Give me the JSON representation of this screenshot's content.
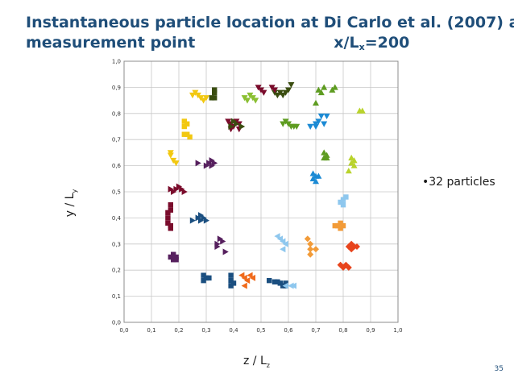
{
  "title": {
    "line1": "Instantaneous particle location at Di Carlo et al. (2007) at",
    "line2_left": "measurement point",
    "line2_right_main": "x/L",
    "line2_right_sub": "x",
    "line2_right_tail": "=200"
  },
  "note": "•32 particles",
  "page_number": "35",
  "chart_data": {
    "type": "scatter",
    "title": "",
    "xlabel_main": "z / L",
    "xlabel_sub": "z",
    "ylabel_main": "y / L",
    "ylabel_sub": "y",
    "xlim": [
      0,
      1
    ],
    "ylim": [
      0,
      1
    ],
    "xticks": [
      "0,0",
      "0,1",
      "0,2",
      "0,3",
      "0,4",
      "0,5",
      "0,6",
      "0,7",
      "0,8",
      "0,9",
      "1,0"
    ],
    "yticks": [
      "0,0",
      "0,1",
      "0,2",
      "0,3",
      "0,4",
      "0,5",
      "0,6",
      "0,7",
      "0,8",
      "0,9",
      "1,0"
    ],
    "grid": true,
    "legend": "none",
    "series": [
      {
        "color": "#f2c811",
        "marker": "tri-down",
        "points": [
          [
            0.26,
            0.88
          ],
          [
            0.27,
            0.87
          ],
          [
            0.28,
            0.86
          ],
          [
            0.29,
            0.85
          ],
          [
            0.3,
            0.86
          ],
          [
            0.25,
            0.87
          ]
        ]
      },
      {
        "color": "#3a4d10",
        "marker": "square",
        "points": [
          [
            0.33,
            0.88
          ],
          [
            0.33,
            0.86
          ],
          [
            0.33,
            0.89
          ],
          [
            0.32,
            0.86
          ]
        ]
      },
      {
        "color": "#f2c811",
        "marker": "square",
        "points": [
          [
            0.22,
            0.77
          ],
          [
            0.23,
            0.76
          ],
          [
            0.22,
            0.75
          ],
          [
            0.23,
            0.72
          ],
          [
            0.24,
            0.71
          ],
          [
            0.22,
            0.72
          ]
        ]
      },
      {
        "color": "#f2c811",
        "marker": "tri-down",
        "points": [
          [
            0.17,
            0.64
          ],
          [
            0.18,
            0.62
          ],
          [
            0.19,
            0.61
          ],
          [
            0.17,
            0.65
          ]
        ]
      },
      {
        "color": "#56205e",
        "marker": "tri-right",
        "points": [
          [
            0.27,
            0.61
          ],
          [
            0.31,
            0.61
          ],
          [
            0.32,
            0.62
          ],
          [
            0.32,
            0.6
          ],
          [
            0.33,
            0.61
          ],
          [
            0.3,
            0.6
          ]
        ]
      },
      {
        "color": "#7a0c2c",
        "marker": "tri-right",
        "points": [
          [
            0.18,
            0.5
          ],
          [
            0.19,
            0.51
          ],
          [
            0.2,
            0.52
          ],
          [
            0.21,
            0.51
          ],
          [
            0.22,
            0.5
          ],
          [
            0.17,
            0.51
          ]
        ]
      },
      {
        "color": "#7a0c2c",
        "marker": "square",
        "points": [
          [
            0.17,
            0.45
          ],
          [
            0.17,
            0.43
          ],
          [
            0.16,
            0.42
          ],
          [
            0.16,
            0.4
          ],
          [
            0.16,
            0.38
          ],
          [
            0.17,
            0.37
          ],
          [
            0.17,
            0.36
          ]
        ]
      },
      {
        "color": "#1b4f80",
        "marker": "tri-right",
        "points": [
          [
            0.25,
            0.39
          ],
          [
            0.27,
            0.4
          ],
          [
            0.28,
            0.41
          ],
          [
            0.29,
            0.4
          ],
          [
            0.3,
            0.39
          ],
          [
            0.28,
            0.39
          ]
        ]
      },
      {
        "color": "#56205e",
        "marker": "tri-right",
        "points": [
          [
            0.34,
            0.3
          ],
          [
            0.35,
            0.32
          ],
          [
            0.36,
            0.31
          ],
          [
            0.34,
            0.29
          ],
          [
            0.37,
            0.27
          ]
        ]
      },
      {
        "color": "#56205e",
        "marker": "square",
        "points": [
          [
            0.18,
            0.26
          ],
          [
            0.19,
            0.25
          ],
          [
            0.18,
            0.24
          ],
          [
            0.19,
            0.24
          ],
          [
            0.17,
            0.25
          ]
        ]
      },
      {
        "color": "#1b4f80",
        "marker": "square",
        "points": [
          [
            0.29,
            0.18
          ],
          [
            0.29,
            0.16
          ],
          [
            0.3,
            0.17
          ],
          [
            0.31,
            0.17
          ]
        ]
      },
      {
        "color": "#1b4f80",
        "marker": "square",
        "points": [
          [
            0.39,
            0.18
          ],
          [
            0.39,
            0.16
          ],
          [
            0.39,
            0.14
          ],
          [
            0.4,
            0.15
          ]
        ]
      },
      {
        "color": "#f06a1b",
        "marker": "tri-left",
        "points": [
          [
            0.43,
            0.18
          ],
          [
            0.44,
            0.17
          ],
          [
            0.45,
            0.16
          ],
          [
            0.46,
            0.18
          ],
          [
            0.44,
            0.14
          ],
          [
            0.47,
            0.17
          ]
        ]
      },
      {
        "color": "#1b4f80",
        "marker": "square",
        "points": [
          [
            0.53,
            0.16
          ],
          [
            0.55,
            0.155
          ],
          [
            0.56,
            0.155
          ],
          [
            0.57,
            0.15
          ],
          [
            0.58,
            0.14
          ],
          [
            0.59,
            0.14
          ],
          [
            0.59,
            0.15
          ]
        ]
      },
      {
        "color": "#8ec7ee",
        "marker": "tri-left",
        "points": [
          [
            0.59,
            0.14
          ],
          [
            0.61,
            0.14
          ],
          [
            0.62,
            0.14
          ]
        ]
      },
      {
        "color": "#8ec7ee",
        "marker": "tri-left",
        "points": [
          [
            0.56,
            0.33
          ],
          [
            0.57,
            0.32
          ],
          [
            0.58,
            0.31
          ],
          [
            0.59,
            0.3
          ],
          [
            0.58,
            0.28
          ]
        ]
      },
      {
        "color": "#f29b38",
        "marker": "diamond",
        "points": [
          [
            0.67,
            0.32
          ],
          [
            0.68,
            0.3
          ],
          [
            0.68,
            0.28
          ],
          [
            0.68,
            0.26
          ],
          [
            0.7,
            0.28
          ]
        ]
      },
      {
        "color": "#f29b38",
        "marker": "square",
        "points": [
          [
            0.78,
            0.37
          ],
          [
            0.79,
            0.36
          ],
          [
            0.79,
            0.38
          ],
          [
            0.77,
            0.37
          ],
          [
            0.8,
            0.37
          ]
        ]
      },
      {
        "color": "#e8441c",
        "marker": "diamond",
        "points": [
          [
            0.82,
            0.29
          ],
          [
            0.83,
            0.3
          ],
          [
            0.84,
            0.29
          ],
          [
            0.85,
            0.29
          ],
          [
            0.83,
            0.28
          ]
        ]
      },
      {
        "color": "#e8441c",
        "marker": "diamond",
        "points": [
          [
            0.8,
            0.21
          ],
          [
            0.81,
            0.22
          ],
          [
            0.82,
            0.21
          ],
          [
            0.79,
            0.22
          ]
        ]
      },
      {
        "color": "#8ec7ee",
        "marker": "square",
        "points": [
          [
            0.79,
            0.46
          ],
          [
            0.8,
            0.47
          ],
          [
            0.8,
            0.45
          ],
          [
            0.81,
            0.48
          ]
        ]
      },
      {
        "color": "#1b8ad4",
        "marker": "tri-up",
        "points": [
          [
            0.69,
            0.55
          ],
          [
            0.7,
            0.56
          ],
          [
            0.7,
            0.54
          ],
          [
            0.69,
            0.57
          ],
          [
            0.71,
            0.56
          ]
        ]
      },
      {
        "color": "#5e9c21",
        "marker": "tri-up",
        "points": [
          [
            0.73,
            0.65
          ],
          [
            0.74,
            0.64
          ],
          [
            0.74,
            0.63
          ],
          [
            0.73,
            0.63
          ]
        ]
      },
      {
        "color": "#b9d32c",
        "marker": "tri-up",
        "points": [
          [
            0.83,
            0.63
          ],
          [
            0.84,
            0.62
          ],
          [
            0.83,
            0.61
          ],
          [
            0.84,
            0.6
          ],
          [
            0.82,
            0.58
          ]
        ]
      },
      {
        "color": "#b9d32c",
        "marker": "tri-up",
        "points": [
          [
            0.86,
            0.81
          ],
          [
            0.87,
            0.81
          ]
        ]
      },
      {
        "color": "#1b8ad4",
        "marker": "tri-down",
        "points": [
          [
            0.68,
            0.75
          ],
          [
            0.7,
            0.76
          ],
          [
            0.71,
            0.77
          ],
          [
            0.73,
            0.76
          ],
          [
            0.72,
            0.79
          ],
          [
            0.74,
            0.79
          ],
          [
            0.7,
            0.75
          ]
        ]
      },
      {
        "color": "#5e9c21",
        "marker": "tri-up",
        "points": [
          [
            0.7,
            0.84
          ],
          [
            0.72,
            0.88
          ],
          [
            0.73,
            0.9
          ],
          [
            0.76,
            0.89
          ],
          [
            0.77,
            0.9
          ],
          [
            0.71,
            0.89
          ]
        ]
      },
      {
        "color": "#5e9c21",
        "marker": "tri-down",
        "points": [
          [
            0.58,
            0.76
          ],
          [
            0.6,
            0.76
          ],
          [
            0.61,
            0.75
          ],
          [
            0.62,
            0.75
          ],
          [
            0.63,
            0.75
          ],
          [
            0.59,
            0.77
          ]
        ]
      },
      {
        "color": "#3a4d10",
        "marker": "tri-down",
        "points": [
          [
            0.55,
            0.88
          ],
          [
            0.56,
            0.87
          ],
          [
            0.57,
            0.88
          ],
          [
            0.58,
            0.87
          ],
          [
            0.59,
            0.88
          ],
          [
            0.6,
            0.89
          ],
          [
            0.61,
            0.91
          ]
        ]
      },
      {
        "color": "#7a0c2c",
        "marker": "tri-down",
        "points": [
          [
            0.49,
            0.9
          ],
          [
            0.5,
            0.89
          ],
          [
            0.51,
            0.88
          ],
          [
            0.54,
            0.9
          ],
          [
            0.55,
            0.89
          ]
        ]
      },
      {
        "color": "#8bbf33",
        "marker": "tri-down",
        "points": [
          [
            0.44,
            0.86
          ],
          [
            0.45,
            0.85
          ],
          [
            0.46,
            0.87
          ],
          [
            0.47,
            0.86
          ],
          [
            0.48,
            0.85
          ]
        ]
      },
      {
        "color": "#7a0c2c",
        "marker": "tri-down",
        "points": [
          [
            0.38,
            0.77
          ],
          [
            0.39,
            0.76
          ],
          [
            0.4,
            0.75
          ],
          [
            0.41,
            0.77
          ],
          [
            0.42,
            0.74
          ],
          [
            0.39,
            0.74
          ],
          [
            0.42,
            0.76
          ]
        ]
      },
      {
        "color": "#3a4d10",
        "marker": "tri-right",
        "points": [
          [
            0.39,
            0.75
          ],
          [
            0.4,
            0.77
          ],
          [
            0.41,
            0.76
          ],
          [
            0.43,
            0.75
          ]
        ]
      }
    ]
  }
}
